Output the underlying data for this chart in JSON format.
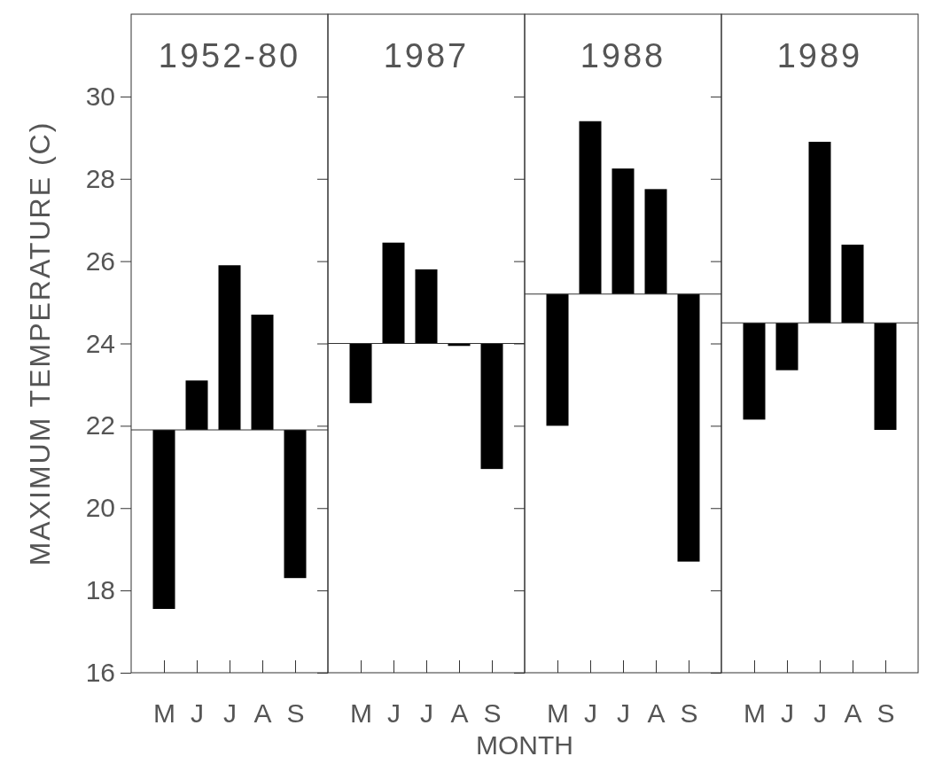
{
  "chart_data": [
    {
      "type": "bar",
      "title": "1952-80",
      "xlabel": "MONTH",
      "ylabel": "MAXIMUM TEMPERATURE (C)",
      "categories": [
        "M",
        "J",
        "J",
        "A",
        "S"
      ],
      "values": [
        -4.35,
        1.2,
        4.0,
        2.8,
        -3.6
      ],
      "base": [
        21.9,
        21.9,
        21.9,
        21.9,
        21.9
      ],
      "color": "#000000",
      "ylim": [
        16,
        32
      ],
      "yticks": [
        16,
        18,
        20,
        22,
        24,
        26,
        28,
        30
      ],
      "ref_lines": [
        {
          "axis": "y",
          "value": 21.9
        }
      ]
    },
    {
      "type": "bar",
      "title": "1987",
      "categories": [
        "M",
        "J",
        "J",
        "A",
        "S"
      ],
      "values": [
        -1.45,
        2.45,
        1.8,
        -0.06,
        -3.05
      ],
      "base": [
        24.0,
        24.0,
        24.0,
        24.0,
        24.0
      ],
      "color": "#000000",
      "ylim": [
        16,
        32
      ],
      "yticks": [
        16,
        18,
        20,
        22,
        24,
        26,
        28,
        30
      ],
      "tick_labels": "x",
      "ref_lines": [
        {
          "axis": "y",
          "value": 24.0
        }
      ]
    },
    {
      "type": "bar",
      "title": "1988",
      "categories": [
        "M",
        "J",
        "J",
        "A",
        "S"
      ],
      "values": [
        -3.2,
        4.2,
        3.05,
        2.55,
        -6.5
      ],
      "base": [
        25.2,
        25.2,
        25.2,
        25.2,
        25.2
      ],
      "color": "#000000",
      "ylim": [
        16,
        32
      ],
      "yticks": [
        16,
        18,
        20,
        22,
        24,
        26,
        28,
        30
      ],
      "tick_labels": "x",
      "ref_lines": [
        {
          "axis": "y",
          "value": 25.2
        }
      ]
    },
    {
      "type": "bar",
      "title": "1989",
      "categories": [
        "M",
        "J",
        "J",
        "A",
        "S"
      ],
      "values": [
        -2.35,
        -1.15,
        4.4,
        1.9,
        -2.6
      ],
      "base": [
        24.5,
        24.5,
        24.5,
        24.5,
        24.5
      ],
      "color": "#000000",
      "ylim": [
        16,
        32
      ],
      "yticks": [
        16,
        18,
        20,
        22,
        24,
        26,
        28,
        30
      ],
      "tick_labels": "x",
      "ref_lines": [
        {
          "axis": "y",
          "value": 24.5
        }
      ]
    }
  ]
}
